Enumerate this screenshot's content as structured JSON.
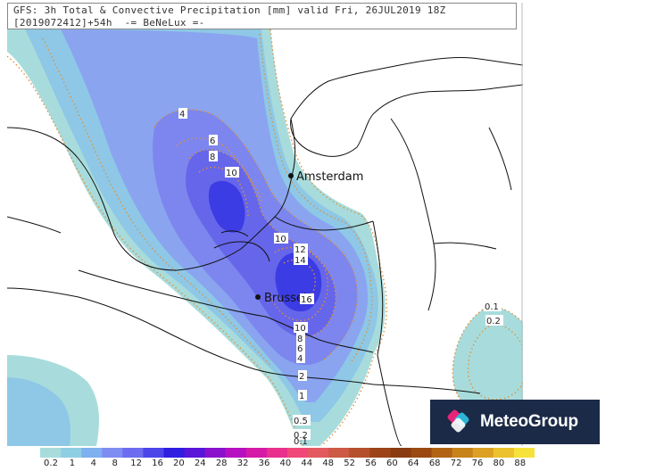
{
  "title": {
    "line1": "GFS: 3h Total & Convective Precipitation [mm] valid Fri, 26JUL2019 18Z",
    "line2": "[2019072412]+54h  -= BeNeLux =-"
  },
  "cities": {
    "amsterdam": "Amsterdam",
    "brussel": "Brussel"
  },
  "contour_labels": {
    "c4": "4",
    "c6": "6",
    "c8": "8",
    "c10a": "10",
    "c10b": "10",
    "c12": "12",
    "c14": "14",
    "c16": "16",
    "c10c": "10",
    "c8b": "8",
    "c6b": "6",
    "c4b": "4",
    "c2": "2",
    "c1": "1",
    "c05": "0.5",
    "c02": "0.2",
    "c01b": "0.1",
    "c01": "0.1",
    "c02b": "0.2"
  },
  "legend": {
    "labels": [
      "0.2",
      "1",
      "4",
      "8",
      "12",
      "16",
      "20",
      "24",
      "28",
      "32",
      "36",
      "40",
      "44",
      "48",
      "52",
      "56",
      "60",
      "64",
      "68",
      "72",
      "76",
      "80",
      "88"
    ],
    "colors": [
      "#a8dcdc",
      "#8fcfe3",
      "#7fb0f0",
      "#7f8cf2",
      "#6c6cf0",
      "#4c45ea",
      "#2f1ee0",
      "#5a16d8",
      "#8a12cc",
      "#b610c0",
      "#d61aa8",
      "#e8308c",
      "#f04878",
      "#e25a60",
      "#cc5a44",
      "#b4502c",
      "#9c4418",
      "#8a3a10",
      "#9a4a10",
      "#b26414",
      "#c8821a",
      "#dca024",
      "#ecc22e",
      "#f6e23a"
    ]
  },
  "brand": {
    "name": "MeteoGroup",
    "background": "#1b2a46"
  },
  "colors": {
    "light_cyan": "#a8dcdc",
    "blue_light": "#8aa8f0",
    "blue_mid": "#7a86ee",
    "blue_dark": "#3a3ae6",
    "contour_dots": "#e0903a"
  }
}
